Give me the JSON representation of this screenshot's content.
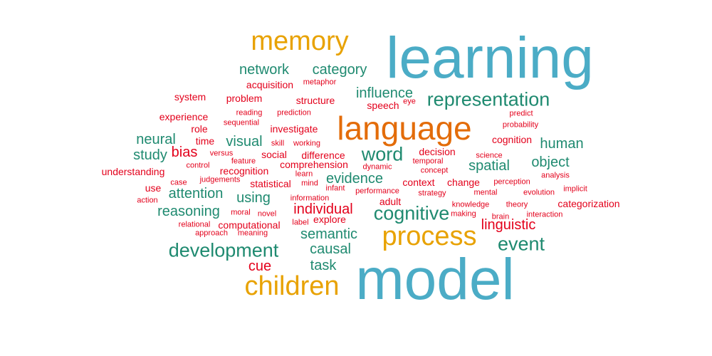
{
  "colors": {
    "blue": "#4bacc6",
    "orange": "#e8a202",
    "dark_orange": "#e36c09",
    "teal": "#1f8a70",
    "red": "#e3001b"
  },
  "words": [
    {
      "text": "learning",
      "color": "blue",
      "size": "xxl"
    },
    {
      "text": "model",
      "color": "blue",
      "size": "xxl"
    },
    {
      "text": "language",
      "color": "dark_orange",
      "size": "xl"
    },
    {
      "text": "memory",
      "color": "orange",
      "size": "l"
    },
    {
      "text": "process",
      "color": "orange",
      "size": "l"
    },
    {
      "text": "children",
      "color": "orange",
      "size": "l"
    },
    {
      "text": "representation",
      "color": "teal",
      "size": "m"
    },
    {
      "text": "word",
      "color": "teal",
      "size": "m"
    },
    {
      "text": "cognitive",
      "color": "teal",
      "size": "m"
    },
    {
      "text": "event",
      "color": "teal",
      "size": "m"
    },
    {
      "text": "development",
      "color": "teal",
      "size": "m"
    },
    {
      "text": "network",
      "color": "teal",
      "size": "s"
    },
    {
      "text": "category",
      "color": "teal",
      "size": "s"
    },
    {
      "text": "influence",
      "color": "teal",
      "size": "s"
    },
    {
      "text": "neural",
      "color": "teal",
      "size": "s"
    },
    {
      "text": "visual",
      "color": "teal",
      "size": "s"
    },
    {
      "text": "human",
      "color": "teal",
      "size": "s"
    },
    {
      "text": "study",
      "color": "teal",
      "size": "s"
    },
    {
      "text": "object",
      "color": "teal",
      "size": "s"
    },
    {
      "text": "spatial",
      "color": "teal",
      "size": "s"
    },
    {
      "text": "evidence",
      "color": "teal",
      "size": "s"
    },
    {
      "text": "using",
      "color": "teal",
      "size": "s"
    },
    {
      "text": "attention",
      "color": "teal",
      "size": "s"
    },
    {
      "text": "reasoning",
      "color": "teal",
      "size": "s"
    },
    {
      "text": "semantic",
      "color": "teal",
      "size": "s"
    },
    {
      "text": "causal",
      "color": "teal",
      "size": "s"
    },
    {
      "text": "task",
      "color": "teal",
      "size": "s"
    },
    {
      "text": "acquisition",
      "color": "red",
      "size": "xs"
    },
    {
      "text": "metaphor",
      "color": "red",
      "size": "xxs"
    },
    {
      "text": "system",
      "color": "red",
      "size": "xs"
    },
    {
      "text": "problem",
      "color": "red",
      "size": "xs"
    },
    {
      "text": "structure",
      "color": "red",
      "size": "xs"
    },
    {
      "text": "speech",
      "color": "red",
      "size": "xs"
    },
    {
      "text": "eye",
      "color": "red",
      "size": "xxs"
    },
    {
      "text": "experience",
      "color": "red",
      "size": "xs"
    },
    {
      "text": "reading",
      "color": "red",
      "size": "xxs"
    },
    {
      "text": "prediction",
      "color": "red",
      "size": "xxs"
    },
    {
      "text": "predict",
      "color": "red",
      "size": "xxs"
    },
    {
      "text": "sequential",
      "color": "red",
      "size": "xxs"
    },
    {
      "text": "probability",
      "color": "red",
      "size": "xxs"
    },
    {
      "text": "role",
      "color": "red",
      "size": "xs"
    },
    {
      "text": "investigate",
      "color": "red",
      "size": "xs"
    },
    {
      "text": "cognition",
      "color": "red",
      "size": "xs"
    },
    {
      "text": "time",
      "color": "red",
      "size": "xs"
    },
    {
      "text": "skill",
      "color": "red",
      "size": "xxs"
    },
    {
      "text": "working",
      "color": "red",
      "size": "xxs"
    },
    {
      "text": "bias",
      "color": "red",
      "size": "s"
    },
    {
      "text": "versus",
      "color": "red",
      "size": "xxs"
    },
    {
      "text": "social",
      "color": "red",
      "size": "xs"
    },
    {
      "text": "difference",
      "color": "red",
      "size": "xs"
    },
    {
      "text": "decision",
      "color": "red",
      "size": "xs"
    },
    {
      "text": "science",
      "color": "red",
      "size": "xxs"
    },
    {
      "text": "feature",
      "color": "red",
      "size": "xxs"
    },
    {
      "text": "control",
      "color": "red",
      "size": "xxs"
    },
    {
      "text": "comprehension",
      "color": "red",
      "size": "xs"
    },
    {
      "text": "temporal",
      "color": "red",
      "size": "xxs"
    },
    {
      "text": "understanding",
      "color": "red",
      "size": "xs"
    },
    {
      "text": "recognition",
      "color": "red",
      "size": "xs"
    },
    {
      "text": "dynamic",
      "color": "red",
      "size": "xxs"
    },
    {
      "text": "concept",
      "color": "red",
      "size": "xxs"
    },
    {
      "text": "analysis",
      "color": "red",
      "size": "xxs"
    },
    {
      "text": "learn",
      "color": "red",
      "size": "xxs"
    },
    {
      "text": "judgements",
      "color": "red",
      "size": "xxs"
    },
    {
      "text": "case",
      "color": "red",
      "size": "xxs"
    },
    {
      "text": "statistical",
      "color": "red",
      "size": "xs"
    },
    {
      "text": "mind",
      "color": "red",
      "size": "xxs"
    },
    {
      "text": "context",
      "color": "red",
      "size": "xs"
    },
    {
      "text": "change",
      "color": "red",
      "size": "xs"
    },
    {
      "text": "perception",
      "color": "red",
      "size": "xxs"
    },
    {
      "text": "use",
      "color": "red",
      "size": "xs"
    },
    {
      "text": "infant",
      "color": "red",
      "size": "xxs"
    },
    {
      "text": "mental",
      "color": "red",
      "size": "xxs"
    },
    {
      "text": "performance",
      "color": "red",
      "size": "xxs"
    },
    {
      "text": "strategy",
      "color": "red",
      "size": "xxs"
    },
    {
      "text": "evolution",
      "color": "red",
      "size": "xxs"
    },
    {
      "text": "implicit",
      "color": "red",
      "size": "xxs"
    },
    {
      "text": "information",
      "color": "red",
      "size": "xxs"
    },
    {
      "text": "action",
      "color": "red",
      "size": "xxs"
    },
    {
      "text": "adult",
      "color": "red",
      "size": "xs"
    },
    {
      "text": "knowledge",
      "color": "red",
      "size": "xxs"
    },
    {
      "text": "theory",
      "color": "red",
      "size": "xxs"
    },
    {
      "text": "categorization",
      "color": "red",
      "size": "xs"
    },
    {
      "text": "individual",
      "color": "red",
      "size": "s"
    },
    {
      "text": "moral",
      "color": "red",
      "size": "xxs"
    },
    {
      "text": "novel",
      "color": "red",
      "size": "xxs"
    },
    {
      "text": "making",
      "color": "red",
      "size": "xxs"
    },
    {
      "text": "brain",
      "color": "red",
      "size": "xxs"
    },
    {
      "text": "interaction",
      "color": "red",
      "size": "xxs"
    },
    {
      "text": "explore",
      "color": "red",
      "size": "xs"
    },
    {
      "text": "relational",
      "color": "red",
      "size": "xxs"
    },
    {
      "text": "computational",
      "color": "red",
      "size": "xs"
    },
    {
      "text": "label",
      "color": "red",
      "size": "xxs"
    },
    {
      "text": "linguistic",
      "color": "red",
      "size": "s"
    },
    {
      "text": "approach",
      "color": "red",
      "size": "xxs"
    },
    {
      "text": "meaning",
      "color": "red",
      "size": "xxs"
    },
    {
      "text": "cue",
      "color": "red",
      "size": "s"
    }
  ]
}
